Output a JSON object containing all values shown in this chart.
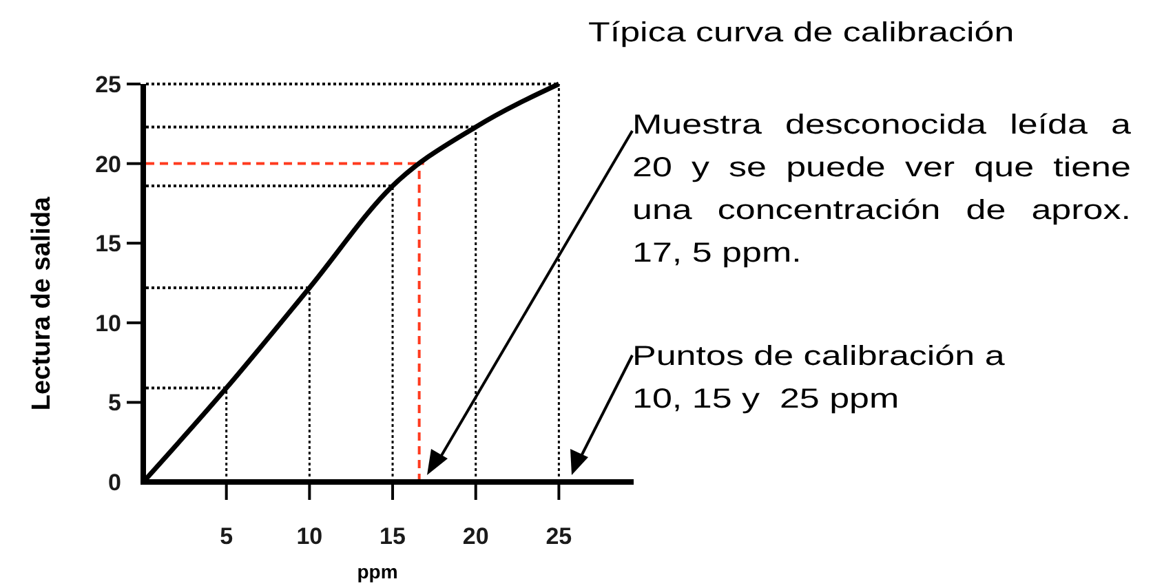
{
  "chart_data": {
    "type": "line",
    "title": "Típica curva de calibración",
    "xlabel": "ppm",
    "ylabel": "Lectura de salida",
    "x": [
      0,
      5,
      10,
      15,
      20,
      25
    ],
    "series": [
      {
        "color": "#000000",
        "values": [
          0,
          5.9,
          12.2,
          18.6,
          22.3,
          25
        ]
      }
    ],
    "xlim": [
      0,
      29.5
    ],
    "ylim": [
      0,
      25
    ],
    "xticks": [
      5,
      10,
      15,
      20,
      25
    ],
    "yticks": [
      0,
      5,
      10,
      15,
      20,
      25
    ],
    "grid": false,
    "marker": "none",
    "line_style": "solid",
    "ref_lines": [
      {
        "axis": "x",
        "value": 5,
        "color": "#000000",
        "line_style": "dotted"
      },
      {
        "axis": "x",
        "value": 10,
        "color": "#000000",
        "line_style": "dotted"
      },
      {
        "axis": "x",
        "value": 15,
        "color": "#000000",
        "line_style": "dotted"
      },
      {
        "axis": "x",
        "value": 20,
        "color": "#000000",
        "line_style": "dotted"
      },
      {
        "axis": "x",
        "value": 25,
        "color": "#000000",
        "line_style": "dotted"
      },
      {
        "axis": "y",
        "value": 5.9,
        "color": "#000000",
        "line_style": "dotted"
      },
      {
        "axis": "y",
        "value": 12.2,
        "color": "#000000",
        "line_style": "dotted"
      },
      {
        "axis": "y",
        "value": 18.6,
        "color": "#000000",
        "line_style": "dotted"
      },
      {
        "axis": "y",
        "value": 20,
        "color": "#ff3b1f",
        "line_style": "dashed"
      },
      {
        "axis": "y",
        "value": 22.3,
        "color": "#000000",
        "line_style": "dotted"
      },
      {
        "axis": "y",
        "value": 25,
        "color": "#000000",
        "line_style": "dotted"
      },
      {
        "axis": "x",
        "value": 16.6,
        "color": "#ff3b1f",
        "line_style": "dashed"
      }
    ],
    "annotations": [
      "Muestra desconocida leída a 20 y se puede ver que tiene una concentración de aprox. 17, 5 ppm.",
      "Puntos de calibración a 10, 15 y  25 ppm"
    ]
  }
}
